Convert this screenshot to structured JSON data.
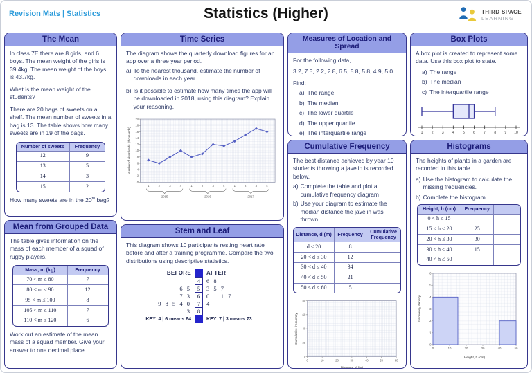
{
  "header": {
    "breadcrumb": "Revision Mats | Statistics",
    "title": "Statistics (Higher)",
    "logo": {
      "line1": "THIRD SPACE",
      "line2": "LEARNING"
    }
  },
  "colors": {
    "panel_header_bg": "#949ee6",
    "panel_border": "#36368c",
    "panel_title_text": "#1c1c78",
    "body_text": "#2e3a66",
    "table_header_bg": "#c3caf2",
    "table_border": "#7b80bb",
    "breadcrumb_blue": "#2d9cdb",
    "chart_line": "#5560c4",
    "bar_fill": "#cdd4f6",
    "stem_fill": "#2424cc",
    "logo_blue": "#1f6cb5",
    "logo_yellow": "#e9c93b"
  },
  "panels": {
    "mean": {
      "title": "The Mean",
      "p1": "In class 7E there are 8 girls, and 6 boys. The mean weight of the girls is 39.4kg. The mean weight of the boys is 43.7kg.",
      "p2": "What is the mean weight of the students?",
      "p3": "There are 20 bags of sweets on a shelf. The mean number of sweets in a bag is 13. The table shows how many sweets are in 19 of the bags.",
      "table": {
        "headers": [
          "Number of sweets",
          "Frequency"
        ],
        "rows": [
          [
            "12",
            "9"
          ],
          [
            "13",
            "5"
          ],
          [
            "14",
            "3"
          ],
          [
            "15",
            "2"
          ]
        ]
      },
      "q_prefix": "How many sweets are in the 20",
      "q_sup": "th",
      "q_suffix": " bag?"
    },
    "grouped": {
      "title": "Mean from Grouped Data",
      "p1": "The table gives information on the mass of each member of a squad of rugby players.",
      "table": {
        "headers": [
          "Mass, m (kg)",
          "Frequency"
        ],
        "rows": [
          [
            "70 < m ≤ 80",
            "7"
          ],
          [
            "80 < m ≤ 90",
            "12"
          ],
          [
            "95 < m ≤ 100",
            "8"
          ],
          [
            "105 < m ≤ 110",
            "7"
          ],
          [
            "110 < m ≤ 120",
            "6"
          ]
        ]
      },
      "p2": "Work out an estimate of the mean mass of a squad member. Give your answer to one decimal place."
    },
    "time_series": {
      "title": "Time Series",
      "p1": "The diagram shows the quarterly download figures for an app over a three year period.",
      "qa_letter": "a)",
      "qa": "To the nearest thousand, estimate the number of downloads in each year.",
      "qb_letter": "b)",
      "qb": "Is it possible to estimate how many times the app will be downloaded in 2018, using this diagram? Explain your reasoning."
    },
    "stem_leaf": {
      "title": "Stem and Leaf",
      "p1": "This diagram shows 10 participants resting heart rate before and after a training programme. Compare the two distributions using descriptive statistics.",
      "before_label": "BEFORE",
      "after_label": "AFTER",
      "rows": [
        {
          "before": "",
          "stem": "4",
          "after": "6 8"
        },
        {
          "before": "6 5",
          "stem": "5",
          "after": "3 5 7"
        },
        {
          "before": "7 3",
          "stem": "6",
          "after": "0 1 1 7"
        },
        {
          "before": "9 8 5 4 0",
          "stem": "7",
          "after": "4"
        },
        {
          "before": "3",
          "stem": "8",
          "after": ""
        }
      ],
      "key_before": "KEY: 4 | 6 means 64",
      "key_after": "KEY: 7 | 3 means 73"
    },
    "measures": {
      "title": "Measures of Location and Spread",
      "p1": "For the following data,",
      "data_values": "3.2, 7.5, 2.2, 2.8, 6.5, 5.8, 5.8, 4.9, 5.0",
      "find_label": "Find:",
      "items": [
        {
          "letter": "a)",
          "text": "The range"
        },
        {
          "letter": "b)",
          "text": "The median"
        },
        {
          "letter": "c)",
          "text": "The lower quartile"
        },
        {
          "letter": "d)",
          "text": "The upper quartile"
        },
        {
          "letter": "e)",
          "text": "The interquartile range"
        }
      ]
    },
    "cumulative": {
      "title": "Cumulative Frequency",
      "p1": "The best distance achieved by year 10 students throwing a javelin is recorded below.",
      "qa_letter": "a)",
      "qa": "Complete the table and plot a cumulative frequency diagram",
      "qb_letter": "b)",
      "qb": "Use your diagram to estimate the median distance the javelin was thrown.",
      "table": {
        "headers": [
          "Distance, d (m)",
          "Frequency",
          "Cumulative Frequency"
        ],
        "rows": [
          [
            "d ≤ 20",
            "8",
            ""
          ],
          [
            "20 < d ≤ 30",
            "12",
            ""
          ],
          [
            "30 < d ≤ 40",
            "34",
            ""
          ],
          [
            "40 < d ≤ 50",
            "21",
            ""
          ],
          [
            "50 < d ≤ 60",
            "5",
            ""
          ]
        ]
      }
    },
    "box_plots": {
      "title": "Box Plots",
      "p1": "A box plot is created to represent some data. Use this box plot to state.",
      "items": [
        {
          "letter": "a)",
          "text": "The range"
        },
        {
          "letter": "b)",
          "text": "The median"
        },
        {
          "letter": "c)",
          "text": "The interquartile range"
        }
      ]
    },
    "histograms": {
      "title": "Histograms",
      "p1": "The heights of plants in a garden are recorded in this table.",
      "qa_letter": "a)",
      "qa": "Use the histogram to calculate the missing frequencies.",
      "qb_letter": "b)",
      "qb": "Complete the histogram",
      "table": {
        "headers": [
          "Height, h (cm)",
          "Frequency",
          ""
        ],
        "rows": [
          [
            "0 < h ≤ 15",
            "",
            ""
          ],
          [
            "15 < h ≤ 20",
            "25",
            ""
          ],
          [
            "20 < h ≤ 30",
            "30",
            ""
          ],
          [
            "30 < h ≤ 40",
            "15",
            ""
          ],
          [
            "40 < h ≤ 50",
            "",
            ""
          ]
        ]
      }
    }
  },
  "chart_data": [
    {
      "name": "time-series",
      "type": "line",
      "ylabel": "Number of downloads (thousands)",
      "ylim": [
        0,
        20
      ],
      "ytick_step": 2,
      "x_quarter_labels": [
        "1",
        "2",
        "3",
        "4",
        "1",
        "2",
        "3",
        "4",
        "1",
        "2",
        "3",
        "4"
      ],
      "year_labels": [
        "2015",
        "2016",
        "2017"
      ],
      "values": [
        7,
        6,
        8,
        10,
        8,
        9,
        12,
        11.5,
        13,
        15,
        17,
        16
      ],
      "grid": true,
      "legend": "none"
    },
    {
      "name": "box-plot",
      "type": "boxplot",
      "min": 1,
      "q1": 4,
      "median": 5.5,
      "q3": 6,
      "max": 8,
      "axis_ticks": [
        1,
        2,
        3,
        4,
        5,
        6,
        7,
        8,
        9,
        10
      ]
    },
    {
      "name": "cumulative-frequency-grid",
      "type": "line",
      "xlabel": "Distance, d (m)",
      "ylabel": "Cumulative frequency",
      "xlim": [
        0,
        60
      ],
      "xtick_step": 10,
      "ylim": [
        0,
        80
      ],
      "ytick_step": 20,
      "values": [],
      "grid": true,
      "note": "empty grid for students to plot"
    },
    {
      "name": "histogram",
      "type": "bar",
      "xlabel": "Height, h (cm)",
      "ylabel": "Frequency density",
      "xlim": [
        0,
        50
      ],
      "xtick_step": 10,
      "ylim": [
        0,
        6
      ],
      "ytick_step": 1,
      "bars": [
        {
          "x0": 0,
          "x1": 15,
          "density": 4
        },
        {
          "x0": 40,
          "x1": 50,
          "density": 2
        }
      ],
      "grid": true
    }
  ]
}
